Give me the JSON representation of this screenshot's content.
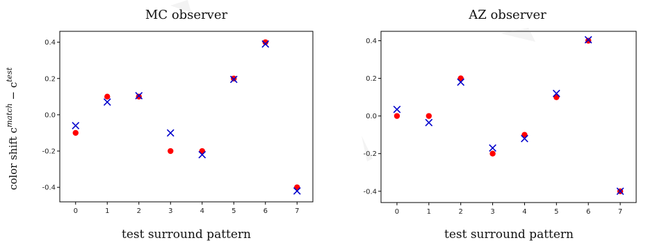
{
  "ylabel_main": "color shift c",
  "ylabel_sup1": "match",
  "ylabel_minus": " − c",
  "ylabel_sup2": "test",
  "colors": {
    "circle": "#ff0000",
    "cross": "#0000cc"
  },
  "chart_data": [
    {
      "type": "scatter",
      "title": "MC observer",
      "xlabel": "test surround pattern",
      "ylabel": "",
      "x_ticks": [
        "0",
        "1",
        "2",
        "3",
        "4",
        "5",
        "6",
        "7"
      ],
      "y_ticks": [
        "0.4",
        "0.2",
        "0.0",
        "-0.2",
        "-0.4"
      ],
      "xlim": [
        -0.5,
        7.5
      ],
      "ylim": [
        -0.48,
        0.46
      ],
      "grid": false,
      "series": [
        {
          "marker": "circle",
          "color": "#ff0000",
          "x": [
            0,
            1,
            2,
            3,
            4,
            5,
            6,
            7
          ],
          "y": [
            -0.1,
            0.1,
            0.1,
            -0.2,
            -0.2,
            0.2,
            0.4,
            -0.4
          ]
        },
        {
          "marker": "x",
          "color": "#0000cc",
          "x": [
            0,
            1,
            2,
            3,
            4,
            5,
            6,
            7
          ],
          "y": [
            -0.06,
            0.07,
            0.105,
            -0.1,
            -0.22,
            0.195,
            0.39,
            -0.42
          ]
        }
      ]
    },
    {
      "type": "scatter",
      "title": "AZ observer",
      "xlabel": "test surround pattern",
      "ylabel": "",
      "x_ticks": [
        "0",
        "1",
        "2",
        "3",
        "4",
        "5",
        "6",
        "7"
      ],
      "y_ticks": [
        "0.4",
        "0.2",
        "0.0",
        "-0.2",
        "-0.4"
      ],
      "xlim": [
        -0.5,
        7.5
      ],
      "ylim": [
        -0.46,
        0.45
      ],
      "grid": false,
      "series": [
        {
          "marker": "circle",
          "color": "#ff0000",
          "x": [
            0,
            1,
            2,
            3,
            4,
            5,
            6,
            7
          ],
          "y": [
            0.0,
            0.0,
            0.2,
            -0.2,
            -0.1,
            0.1,
            0.4,
            -0.4
          ]
        },
        {
          "marker": "x",
          "color": "#0000cc",
          "x": [
            0,
            1,
            2,
            3,
            4,
            5,
            6,
            7
          ],
          "y": [
            0.035,
            -0.035,
            0.18,
            -0.17,
            -0.12,
            0.12,
            0.405,
            -0.4
          ]
        }
      ]
    }
  ]
}
